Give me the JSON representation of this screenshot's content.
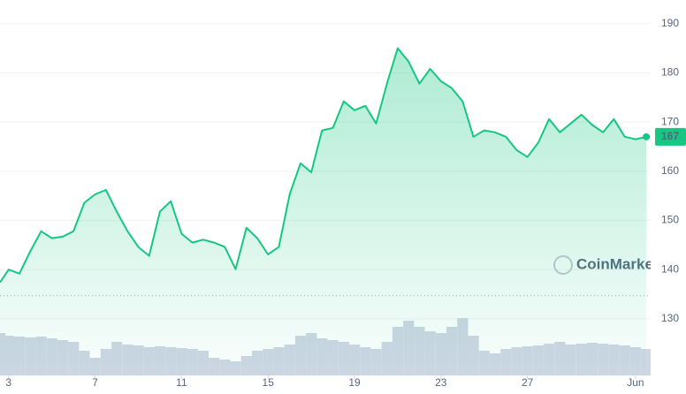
{
  "chart_data": {
    "type": "line",
    "x": [
      2.6,
      3,
      3.5,
      4,
      4.5,
      5,
      5.5,
      6,
      6.5,
      7,
      7.5,
      8,
      8.5,
      9,
      9.5,
      10,
      10.5,
      11,
      11.5,
      12,
      12.5,
      13,
      13.5,
      14,
      14.5,
      15,
      15.5,
      16,
      16.5,
      17,
      17.5,
      18,
      18.5,
      19,
      19.5,
      20,
      20.5,
      21,
      21.5,
      22,
      22.5,
      23,
      23.5,
      24,
      24.5,
      25,
      25.5,
      26,
      26.5,
      27,
      27.5,
      28,
      28.5,
      29,
      29.5,
      30,
      30.5,
      31,
      31.5,
      32,
      32.5
    ],
    "values": [
      137.4,
      140,
      139.2,
      143.7,
      147.8,
      146.4,
      146.7,
      147.8,
      153.6,
      155.3,
      156.2,
      151.8,
      147.8,
      144.6,
      142.8,
      151.8,
      153.9,
      147.3,
      145.5,
      146.1,
      145.5,
      144.6,
      140.1,
      148.5,
      146.4,
      143.1,
      144.6,
      155.3,
      161.6,
      159.8,
      168.3,
      168.8,
      174.2,
      172.4,
      173.3,
      169.7,
      177.8,
      185,
      182.3,
      177.8,
      180.8,
      178.3,
      176.9,
      174.2,
      167,
      168.3,
      167.9,
      167,
      164.3,
      162.9,
      165.8,
      170.6,
      167.9,
      169.7,
      171.5,
      169.4,
      167.9,
      170.6,
      167,
      166.5,
      167
    ],
    "color": "#16c784",
    "volume": {
      "values": [
        48,
        45,
        44,
        43,
        44,
        42,
        40,
        38,
        28,
        20,
        30,
        38,
        35,
        34,
        32,
        33,
        32,
        31,
        30,
        28,
        20,
        18,
        16,
        22,
        28,
        30,
        32,
        35,
        45,
        48,
        42,
        40,
        38,
        35,
        32,
        30,
        38,
        55,
        62,
        55,
        50,
        48,
        55,
        65,
        45,
        28,
        25,
        30,
        32,
        33,
        34,
        36,
        38,
        35,
        36,
        37,
        36,
        35,
        34,
        32,
        30
      ],
      "color": "#cfd6e4",
      "ylim": [
        0,
        160
      ]
    },
    "xlim": [
      2.6,
      32.7
    ],
    "xticks": [
      3,
      7,
      11,
      15,
      19,
      23,
      27,
      {
        "value": 32,
        "label": "Jun"
      }
    ],
    "ylim": [
      118.5,
      194.8
    ],
    "yticks": [
      130,
      140,
      150,
      160,
      170,
      180,
      190
    ],
    "baseline": 134.7,
    "current_price": 167,
    "watermark": "CoinMarketCap",
    "grid": true
  }
}
